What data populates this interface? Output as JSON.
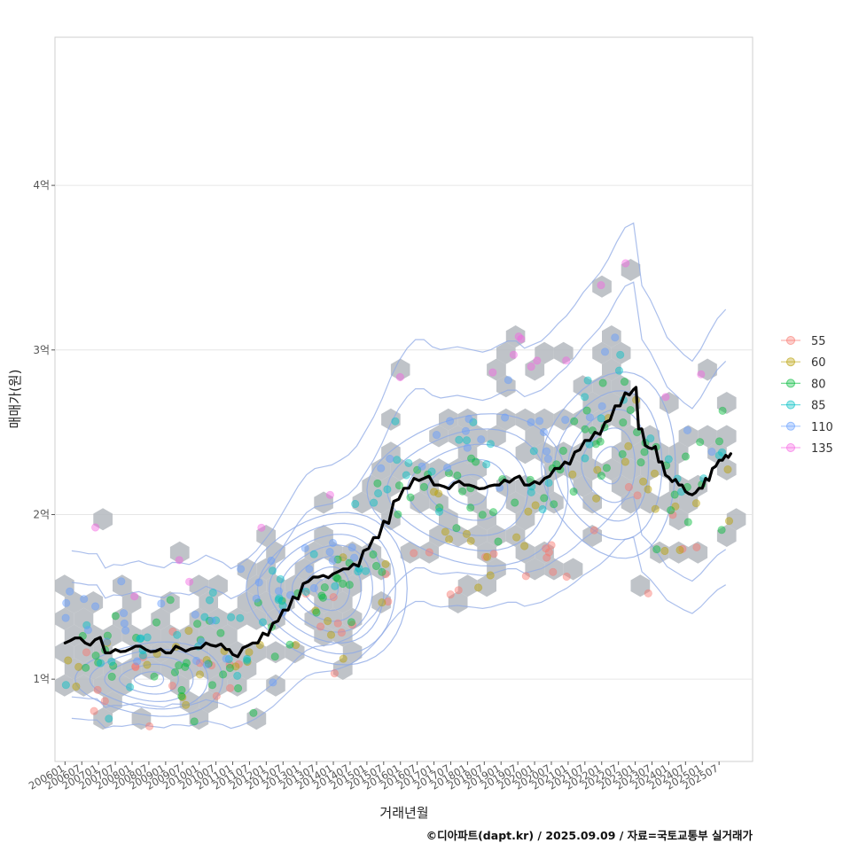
{
  "chart_data": {
    "type": "scatter",
    "title": "",
    "xlabel": "거래년월",
    "ylabel": "매매가(원)",
    "caption": "©디아파트(dapt.kr) / 2025.09.09 / 자료=국토교통부 실거래가",
    "y_unit": "억",
    "ylim": [
      0.5,
      4.9
    ],
    "xlim": [
      2005.7,
      2026.5
    ],
    "y_ticks": [
      {
        "value": 1,
        "label": "1억"
      },
      {
        "value": 2,
        "label": "2억"
      },
      {
        "value": 3,
        "label": "3억"
      },
      {
        "value": 4,
        "label": "4억"
      }
    ],
    "x_ticks": [
      "200601",
      "200607",
      "200701",
      "200707",
      "200801",
      "200807",
      "200901",
      "200907",
      "201001",
      "201007",
      "201101",
      "201107",
      "201201",
      "201207",
      "201301",
      "201307",
      "201401",
      "201407",
      "201501",
      "201507",
      "201601",
      "201607",
      "201701",
      "201707",
      "201801",
      "201807",
      "201901",
      "201907",
      "202001",
      "202007",
      "202101",
      "202107",
      "202201",
      "202207",
      "202301",
      "202307",
      "202401",
      "202407",
      "202501",
      "202507"
    ],
    "legend": {
      "title": "",
      "position": "right",
      "entries": [
        {
          "label": "55",
          "color": "#F8766D"
        },
        {
          "label": "60",
          "color": "#B79F00"
        },
        {
          "label": "80",
          "color": "#00BA38"
        },
        {
          "label": "85",
          "color": "#00BFC4"
        },
        {
          "label": "110",
          "color": "#619CFF"
        },
        {
          "label": "135",
          "color": "#F564E3"
        }
      ]
    },
    "layers": {
      "hexbin_color": "#b4b9be",
      "density_contour_color": "#8faae6",
      "trend_line_color": "#000000"
    },
    "trend_line": [
      [
        2006.0,
        1.22
      ],
      [
        2006.3,
        1.25
      ],
      [
        2006.6,
        1.22
      ],
      [
        2006.9,
        1.24
      ],
      [
        2007.2,
        1.16
      ],
      [
        2007.5,
        1.18
      ],
      [
        2007.8,
        1.17
      ],
      [
        2008.1,
        1.2
      ],
      [
        2008.4,
        1.18
      ],
      [
        2008.7,
        1.17
      ],
      [
        2009.0,
        1.16
      ],
      [
        2009.3,
        1.2
      ],
      [
        2009.6,
        1.17
      ],
      [
        2009.9,
        1.19
      ],
      [
        2010.2,
        1.22
      ],
      [
        2010.5,
        1.2
      ],
      [
        2010.8,
        1.18
      ],
      [
        2011.0,
        1.15
      ],
      [
        2011.3,
        1.19
      ],
      [
        2011.6,
        1.22
      ],
      [
        2011.9,
        1.28
      ],
      [
        2012.2,
        1.34
      ],
      [
        2012.5,
        1.42
      ],
      [
        2012.8,
        1.5
      ],
      [
        2013.1,
        1.58
      ],
      [
        2013.4,
        1.62
      ],
      [
        2013.7,
        1.63
      ],
      [
        2014.0,
        1.64
      ],
      [
        2014.3,
        1.67
      ],
      [
        2014.6,
        1.7
      ],
      [
        2014.9,
        1.78
      ],
      [
        2015.2,
        1.86
      ],
      [
        2015.5,
        1.96
      ],
      [
        2015.8,
        2.08
      ],
      [
        2016.1,
        2.16
      ],
      [
        2016.4,
        2.22
      ],
      [
        2016.7,
        2.22
      ],
      [
        2017.0,
        2.18
      ],
      [
        2017.3,
        2.17
      ],
      [
        2017.6,
        2.19
      ],
      [
        2017.9,
        2.18
      ],
      [
        2018.2,
        2.17
      ],
      [
        2018.5,
        2.16
      ],
      [
        2018.8,
        2.18
      ],
      [
        2019.1,
        2.21
      ],
      [
        2019.4,
        2.22
      ],
      [
        2019.7,
        2.18
      ],
      [
        2020.0,
        2.2
      ],
      [
        2020.3,
        2.22
      ],
      [
        2020.6,
        2.28
      ],
      [
        2020.9,
        2.32
      ],
      [
        2021.2,
        2.38
      ],
      [
        2021.5,
        2.45
      ],
      [
        2021.8,
        2.5
      ],
      [
        2022.1,
        2.56
      ],
      [
        2022.4,
        2.66
      ],
      [
        2022.7,
        2.74
      ],
      [
        2022.95,
        2.76
      ],
      [
        2023.1,
        2.52
      ],
      [
        2023.3,
        2.42
      ],
      [
        2023.5,
        2.4
      ],
      [
        2023.7,
        2.32
      ],
      [
        2023.9,
        2.24
      ],
      [
        2024.1,
        2.2
      ],
      [
        2024.3,
        2.18
      ],
      [
        2024.5,
        2.14
      ],
      [
        2024.7,
        2.12
      ],
      [
        2024.9,
        2.16
      ],
      [
        2025.1,
        2.22
      ],
      [
        2025.3,
        2.28
      ],
      [
        2025.5,
        2.33
      ],
      [
        2025.7,
        2.36
      ],
      [
        2025.85,
        2.37
      ]
    ],
    "trend_regions": [
      {
        "t0": 2006.0,
        "t1": 2011.0,
        "v0": 1.22,
        "v1": 1.17
      },
      {
        "t0": 2011.0,
        "t1": 2016.5,
        "v0": 1.17,
        "v1": 2.22
      },
      {
        "t0": 2016.5,
        "t1": 2020.5,
        "v0": 2.22,
        "v1": 2.24
      },
      {
        "t0": 2020.5,
        "t1": 2023.0,
        "v0": 2.24,
        "v1": 2.76
      },
      {
        "t0": 2023.0,
        "t1": 2025.9,
        "v0": 2.76,
        "v1": 2.37
      }
    ],
    "point_series": [
      {
        "name": "55",
        "count": 45,
        "offset": -0.45
      },
      {
        "name": "60",
        "count": 55,
        "offset": -0.28
      },
      {
        "name": "80",
        "count": 110,
        "offset": -0.05
      },
      {
        "name": "85",
        "count": 70,
        "offset": 0.05
      },
      {
        "name": "110",
        "count": 60,
        "offset": 0.3
      },
      {
        "name": "135",
        "count": 18,
        "offset": 0.75
      }
    ]
  }
}
